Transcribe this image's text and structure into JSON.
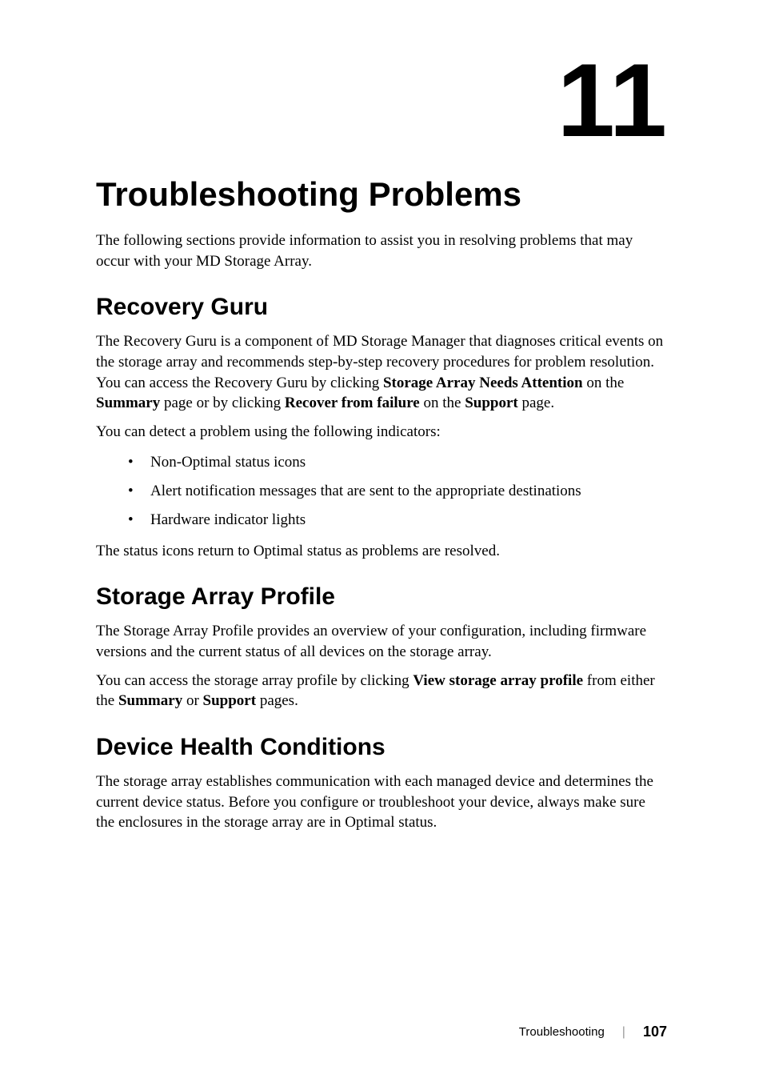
{
  "chapter": {
    "number": "11",
    "number_fontsize": 130,
    "number_color": "#000000",
    "title": "Troubleshooting Problems",
    "title_fontsize": 42,
    "intro": "The following sections provide information to assist you in resolving problems that may occur with your MD Storage Array.",
    "intro_fontsize": 19
  },
  "sections": [
    {
      "heading": "Recovery Guru",
      "heading_fontsize": 30,
      "paragraphs": [
        {
          "segments": [
            {
              "text": "The Recovery Guru is a component of MD Storage Manager that diagnoses critical events on the storage array and recommends step-by-step recovery procedures for problem resolution. You can access the Recovery Guru by clicking ",
              "bold": false
            },
            {
              "text": "Storage Array Needs Attention",
              "bold": true
            },
            {
              "text": " on the ",
              "bold": false
            },
            {
              "text": "Summary",
              "bold": true
            },
            {
              "text": " page or by clicking ",
              "bold": false
            },
            {
              "text": "Recover from failure",
              "bold": true
            },
            {
              "text": " on the ",
              "bold": false
            },
            {
              "text": "Support",
              "bold": true
            },
            {
              "text": " page.",
              "bold": false
            }
          ]
        },
        {
          "segments": [
            {
              "text": "You can detect a problem using the following indicators:",
              "bold": false
            }
          ]
        }
      ],
      "bullets": [
        "Non-Optimal status icons",
        "Alert notification messages that are sent to the appropriate destinations",
        "Hardware indicator lights"
      ],
      "after_bullets": [
        {
          "segments": [
            {
              "text": "The status icons return to Optimal status as problems are resolved.",
              "bold": false
            }
          ]
        }
      ]
    },
    {
      "heading": "Storage Array Profile",
      "heading_fontsize": 30,
      "paragraphs": [
        {
          "segments": [
            {
              "text": "The Storage Array Profile provides an overview of your configuration, including firmware versions and the current status of all devices on the storage array.",
              "bold": false
            }
          ]
        },
        {
          "segments": [
            {
              "text": "You can access the storage array profile by clicking ",
              "bold": false
            },
            {
              "text": "View storage array profile",
              "bold": true
            },
            {
              "text": " from either the ",
              "bold": false
            },
            {
              "text": "Summary",
              "bold": true
            },
            {
              "text": " or ",
              "bold": false
            },
            {
              "text": "Support",
              "bold": true
            },
            {
              "text": " pages.",
              "bold": false
            }
          ]
        }
      ]
    },
    {
      "heading": "Device Health Conditions",
      "heading_fontsize": 30,
      "paragraphs": [
        {
          "segments": [
            {
              "text": "The storage array establishes communication with each managed device and determines the current device status. Before you configure or troubleshoot your device, always make sure the enclosures in the storage array are in Optimal status.",
              "bold": false
            }
          ]
        }
      ]
    }
  ],
  "footer": {
    "label": "Troubleshooting",
    "page_number": "107",
    "label_fontsize": 15,
    "page_fontsize": 18
  },
  "body_fontsize": 19,
  "background_color": "#ffffff",
  "text_color": "#000000"
}
